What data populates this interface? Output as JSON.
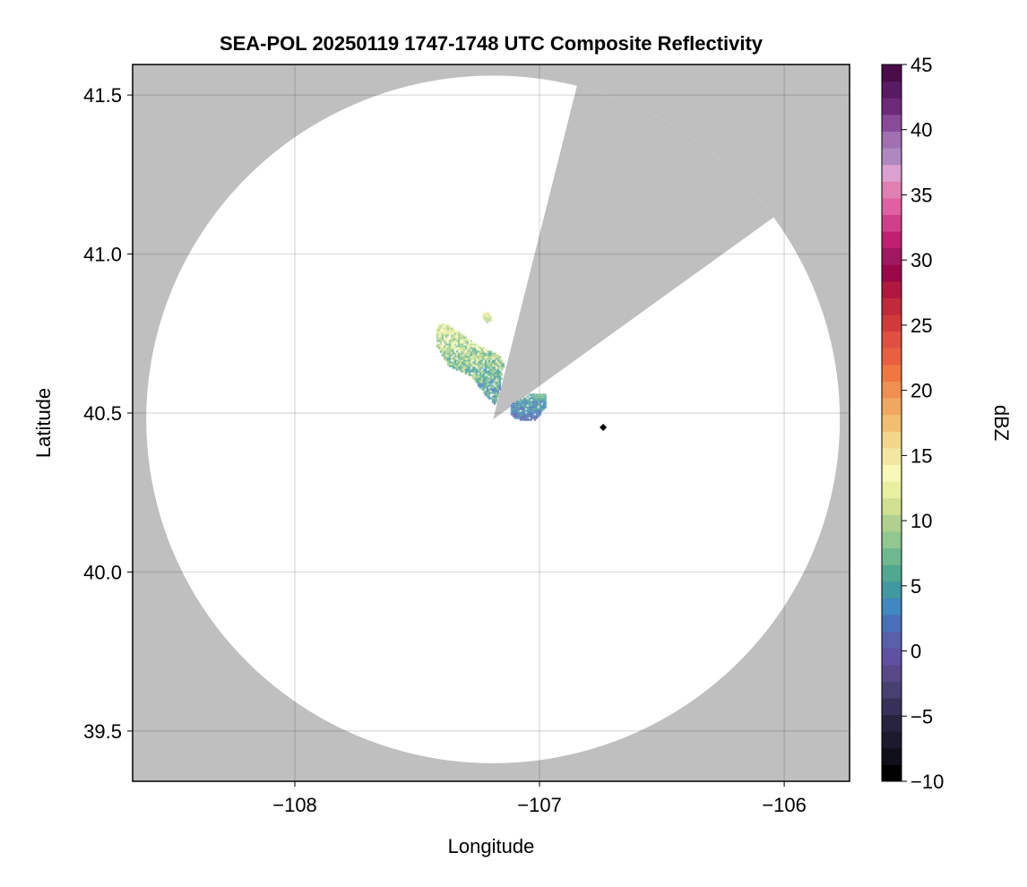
{
  "chart_data": {
    "type": "heatmap",
    "title": "SEA-POL 20250119 1747-1748 UTC Composite Reflectivity",
    "xlabel": "Longitude",
    "ylabel": "Latitude",
    "xlim": [
      -108.663,
      -105.733
    ],
    "ylim": [
      39.342,
      41.596
    ],
    "xticks": [
      -108,
      -107,
      -106
    ],
    "xtick_labels": [
      "−108",
      "−107",
      "−106"
    ],
    "yticks": [
      39.5,
      40.0,
      40.5,
      41.0,
      41.5
    ],
    "ytick_labels": [
      "39.5",
      "40.0",
      "40.5",
      "41.0",
      "41.5"
    ],
    "grid": true,
    "background_color": "#bfbfbf",
    "radar": {
      "lon": -107.19,
      "lat": 40.48,
      "range_km": 120,
      "blocked_azimuths_deg": [
        14,
        54
      ]
    },
    "marker": {
      "lon": -106.74,
      "lat": 40.455,
      "shape": "diamond",
      "color": "#000000"
    },
    "echo_regions": [
      {
        "dbz_range": [
          0,
          16
        ],
        "polygon": [
          [
            -107.421,
            40.78
          ],
          [
            -107.374,
            40.78
          ],
          [
            -107.264,
            40.721
          ],
          [
            -107.172,
            40.687
          ],
          [
            -107.147,
            40.659
          ],
          [
            -107.168,
            40.561
          ],
          [
            -107.183,
            40.527
          ],
          [
            -107.227,
            40.561
          ],
          [
            -107.282,
            40.617
          ],
          [
            -107.374,
            40.651
          ],
          [
            -107.429,
            40.716
          ]
        ]
      },
      {
        "dbz_range": [
          8,
          14
        ],
        "polygon": [
          [
            -107.232,
            40.82
          ],
          [
            -107.205,
            40.822
          ],
          [
            -107.2,
            40.795
          ],
          [
            -107.215,
            40.785
          ],
          [
            -107.232,
            40.795
          ]
        ]
      },
      {
        "dbz_range": [
          -2,
          9
        ],
        "polygon": [
          [
            -107.125,
            40.527
          ],
          [
            -107.044,
            40.561
          ],
          [
            -106.978,
            40.566
          ],
          [
            -106.978,
            40.518
          ],
          [
            -107.015,
            40.482
          ],
          [
            -107.062,
            40.476
          ],
          [
            -107.117,
            40.49
          ]
        ]
      }
    ],
    "colorbar": {
      "label": "dBZ",
      "range": [
        -10,
        45
      ],
      "ticks": [
        -10,
        -5,
        0,
        5,
        10,
        15,
        20,
        25,
        30,
        35,
        40,
        45
      ],
      "tick_labels": [
        "−10",
        "−5",
        "0",
        "5",
        "10",
        "15",
        "20",
        "25",
        "30",
        "35",
        "40",
        "45"
      ],
      "colors_low_to_high": [
        "#000000",
        "#101018",
        "#1c1a2c",
        "#282440",
        "#383058",
        "#484070",
        "#584888",
        "#6050a0",
        "#5860a8",
        "#4870b8",
        "#4088c0",
        "#4098a0",
        "#50a890",
        "#70b890",
        "#90c890",
        "#b0d090",
        "#d0e090",
        "#e8f0a0",
        "#f8f8b8",
        "#f0e8a0",
        "#f0d888",
        "#f0c070",
        "#f0a860",
        "#f09050",
        "#f07840",
        "#e86040",
        "#e05040",
        "#d03a3a",
        "#c02a3a",
        "#b01840",
        "#9a0848",
        "#a01860",
        "#c02070",
        "#d0408a",
        "#e060a0",
        "#e080b0",
        "#dca0d0",
        "#b088c0",
        "#a070b0",
        "#8a4a9a",
        "#6e2a7a",
        "#5a1a63",
        "#4a0d4a"
      ]
    }
  }
}
